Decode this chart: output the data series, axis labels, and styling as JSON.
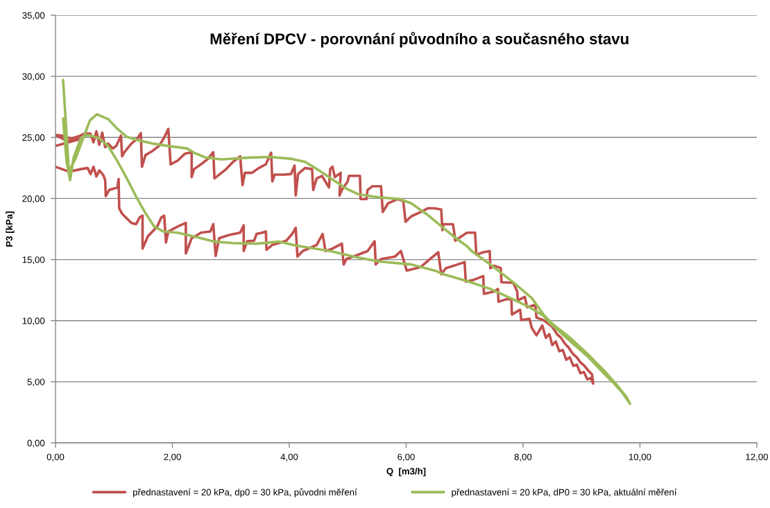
{
  "chart_data": {
    "type": "line",
    "title": "Měření DPCV - porovnání původního a současného stavu",
    "xlabel": "Q  [m3/h]",
    "ylabel": "P3 [kPa]",
    "xlim": [
      0,
      12
    ],
    "ylim": [
      0,
      35
    ],
    "xticks": [
      {
        "value": 0,
        "label": "0,00"
      },
      {
        "value": 2,
        "label": "2,00"
      },
      {
        "value": 4,
        "label": "4,00"
      },
      {
        "value": 6,
        "label": "6,00"
      },
      {
        "value": 8,
        "label": "8,00"
      },
      {
        "value": 10,
        "label": "10,00"
      },
      {
        "value": 12,
        "label": "12,00"
      }
    ],
    "yticks": [
      {
        "value": 0,
        "label": "0,00"
      },
      {
        "value": 5,
        "label": "5,00"
      },
      {
        "value": 10,
        "label": "10,00"
      },
      {
        "value": 15,
        "label": "15,00"
      },
      {
        "value": 20,
        "label": "20,00"
      },
      {
        "value": 25,
        "label": "25,00"
      },
      {
        "value": 30,
        "label": "30,00"
      },
      {
        "value": 35,
        "label": "35,00"
      }
    ],
    "grid": "y",
    "legend": "bottom",
    "series": [
      {
        "name": "přednastavení = 20 kPa, dp0 = 30 kPa, původni měření",
        "color": "#c0504d",
        "x": [
          0.0,
          0.23,
          0.43,
          0.55,
          0.6,
          0.65,
          0.7,
          0.75,
          0.82,
          0.85,
          0.86,
          0.92,
          1.06,
          1.08,
          1.09,
          1.14,
          1.3,
          1.38,
          1.44,
          1.49,
          1.49,
          1.58,
          1.74,
          1.81,
          1.86,
          1.89,
          1.93,
          2.09,
          2.23,
          2.23,
          2.33,
          2.49,
          2.65,
          2.7,
          2.74,
          2.8,
          2.96,
          3.16,
          3.22,
          3.22,
          3.28,
          3.4,
          3.44,
          3.54,
          3.6,
          3.61,
          3.71,
          3.95,
          4.05,
          4.11,
          4.14,
          4.23,
          4.47,
          4.57,
          4.62,
          4.74,
          4.9,
          4.93,
          4.98,
          5.18,
          5.34,
          5.46,
          5.48,
          5.57,
          5.81,
          5.91,
          6.01,
          6.25,
          6.41,
          6.55,
          6.6,
          6.68,
          6.88,
          7.0,
          7.02,
          7.16,
          7.32,
          7.33,
          7.51,
          7.57,
          7.58,
          7.71,
          7.8,
          7.81,
          7.95,
          7.97,
          8.11,
          8.15,
          8.23,
          8.33,
          8.39,
          8.45,
          8.5,
          8.56,
          8.62,
          8.68,
          8.74,
          8.8,
          8.86,
          8.92,
          8.98,
          9.04,
          9.1,
          9.16,
          9.2,
          9.18,
          9.12,
          9.05,
          8.98,
          8.92,
          8.85,
          8.78,
          8.72,
          8.65,
          8.58,
          8.5,
          8.35,
          8.23,
          8.21,
          8.07,
          8.03,
          7.91,
          7.9,
          7.83,
          7.63,
          7.62,
          7.51,
          7.44,
          7.43,
          7.32,
          7.2,
          7.18,
          7.04,
          6.96,
          6.84,
          6.82,
          6.8,
          6.64,
          6.62,
          6.6,
          6.48,
          6.37,
          6.25,
          6.09,
          5.99,
          5.95,
          5.85,
          5.69,
          5.6,
          5.57,
          5.42,
          5.34,
          5.32,
          5.22,
          5.21,
          5.02,
          5.0,
          4.9,
          4.86,
          4.88,
          4.78,
          4.74,
          4.7,
          4.68,
          4.56,
          4.47,
          4.41,
          4.39,
          4.27,
          4.15,
          4.11,
          4.09,
          4.03,
          3.91,
          3.75,
          3.71,
          3.69,
          3.6,
          3.48,
          3.36,
          3.24,
          3.2,
          3.16,
          3.04,
          2.92,
          2.8,
          2.72,
          2.7,
          2.61,
          2.49,
          2.37,
          2.33,
          2.33,
          2.21,
          2.09,
          1.97,
          1.93,
          1.85,
          1.77,
          1.66,
          1.54,
          1.48,
          1.46,
          1.4,
          1.3,
          1.18,
          1.14,
          1.12,
          1.04,
          0.98,
          0.9,
          0.85,
          0.8,
          0.75,
          0.7,
          0.65,
          0.6,
          0.51,
          0.4,
          0.27,
          0.11,
          0.0,
          0.2,
          0.45,
          0.0
        ],
        "values": [
          22.6,
          22.2,
          22.4,
          22.5,
          22.0,
          22.6,
          21.8,
          22.3,
          21.9,
          21.5,
          20.2,
          20.7,
          20.9,
          21.6,
          19.2,
          18.75,
          18.0,
          17.9,
          18.45,
          18.6,
          15.9,
          16.9,
          17.7,
          18.45,
          18.6,
          16.4,
          17.3,
          17.7,
          18.0,
          15.5,
          16.75,
          17.2,
          17.3,
          17.9,
          15.3,
          16.75,
          17.0,
          17.2,
          17.8,
          15.7,
          16.5,
          16.55,
          17.1,
          17.2,
          17.3,
          15.8,
          16.2,
          16.55,
          17.1,
          17.6,
          15.25,
          15.7,
          16.2,
          17.1,
          15.7,
          15.9,
          16.3,
          14.6,
          15.05,
          15.4,
          15.7,
          16.5,
          14.6,
          15.05,
          15.25,
          15.7,
          14.1,
          14.4,
          15.05,
          15.6,
          13.8,
          14.3,
          14.6,
          14.8,
          13.2,
          13.35,
          13.65,
          12.2,
          12.4,
          12.6,
          11.55,
          11.75,
          11.8,
          10.5,
          10.9,
          10.05,
          10.15,
          9.4,
          8.8,
          9.6,
          8.6,
          8.9,
          8.0,
          8.3,
          7.5,
          7.6,
          6.8,
          7.0,
          6.3,
          6.4,
          5.7,
          5.8,
          5.2,
          5.3,
          4.85,
          5.6,
          5.9,
          6.3,
          6.6,
          7.0,
          7.3,
          7.8,
          8.1,
          8.6,
          8.9,
          9.5,
          10.05,
          10.25,
          11.3,
          11.1,
          11.95,
          11.65,
          12.4,
          13.1,
          13.15,
          14.3,
          14.5,
          14.3,
          15.7,
          15.6,
          15.4,
          17.2,
          17.2,
          16.95,
          16.55,
          17.3,
          17.9,
          17.9,
          17.4,
          19.1,
          19.2,
          19.2,
          18.9,
          18.55,
          18.1,
          19.8,
          19.95,
          19.6,
          18.9,
          21.0,
          21.0,
          20.7,
          19.95,
          19.95,
          21.85,
          21.85,
          21.4,
          20.7,
          20.25,
          22.1,
          21.75,
          22.6,
          22.4,
          20.9,
          21.85,
          21.65,
          20.7,
          22.4,
          22.5,
          22.0,
          20.25,
          22.7,
          22.0,
          21.95,
          21.95,
          21.4,
          23.75,
          22.8,
          22.5,
          22.1,
          22.1,
          21.1,
          23.45,
          23.0,
          22.4,
          21.95,
          21.65,
          23.8,
          23.25,
          22.8,
          22.4,
          21.75,
          23.8,
          23.65,
          23.1,
          22.8,
          25.7,
          24.9,
          24.3,
          23.9,
          23.55,
          22.6,
          25.35,
          24.9,
          24.5,
          23.8,
          23.45,
          25.15,
          24.3,
          24.1,
          24.5,
          24.2,
          25.4,
          24.4,
          25.5,
          24.6,
          25.3,
          25.35,
          25.1,
          24.9,
          25.15,
          25.2,
          24.7,
          24.9,
          24.3
        ]
      },
      {
        "name": "přednastavení = 20 kPa, dP0 = 30 kPa, aktuální měření",
        "color": "#9bbb59",
        "x": [
          0.13,
          0.23,
          0.35,
          0.47,
          0.59,
          0.71,
          0.9,
          1.06,
          1.22,
          1.38,
          1.66,
          1.93,
          2.25,
          2.37,
          2.57,
          2.84,
          3.32,
          3.67,
          4.03,
          4.27,
          4.51,
          4.74,
          4.98,
          5.18,
          5.53,
          5.89,
          6.09,
          6.37,
          6.62,
          6.88,
          7.04,
          7.12,
          7.44,
          7.83,
          8.15,
          8.35,
          8.5,
          8.78,
          9.1,
          9.41,
          9.61,
          9.77,
          9.83,
          9.7,
          9.55,
          9.35,
          9.1,
          8.74,
          8.45,
          8.35,
          8.11,
          7.83,
          7.44,
          7.04,
          6.64,
          6.49,
          6.09,
          5.53,
          5.1,
          4.7,
          4.31,
          4.11,
          3.83,
          3.44,
          3.04,
          2.72,
          2.41,
          2.09,
          1.85,
          1.69,
          1.54,
          1.38,
          1.22,
          1.06,
          0.9,
          0.74,
          0.55,
          0.43,
          0.31,
          0.25,
          0.19,
          0.13
        ],
        "values": [
          29.7,
          22.2,
          23.35,
          24.9,
          26.4,
          26.9,
          26.5,
          25.7,
          25.05,
          24.8,
          24.5,
          24.3,
          24.1,
          23.75,
          23.35,
          23.2,
          23.35,
          23.4,
          23.25,
          23.0,
          22.3,
          21.55,
          20.8,
          20.35,
          20.1,
          19.95,
          19.6,
          18.65,
          17.65,
          16.65,
          16.1,
          15.7,
          14.6,
          13.15,
          11.85,
          10.5,
          9.75,
          8.7,
          7.3,
          5.8,
          4.7,
          3.75,
          3.2,
          4.1,
          4.9,
          5.85,
          7.1,
          8.6,
          9.85,
          10.4,
          11.1,
          11.75,
          12.6,
          13.25,
          13.8,
          14.1,
          14.6,
          14.85,
          15.25,
          15.7,
          16.0,
          16.15,
          16.47,
          16.3,
          16.35,
          16.47,
          16.85,
          17.2,
          17.3,
          17.7,
          18.8,
          20.15,
          21.65,
          23.05,
          24.3,
          24.95,
          25.2,
          24.9,
          23.35,
          21.5,
          23.0,
          26.55
        ]
      }
    ]
  }
}
